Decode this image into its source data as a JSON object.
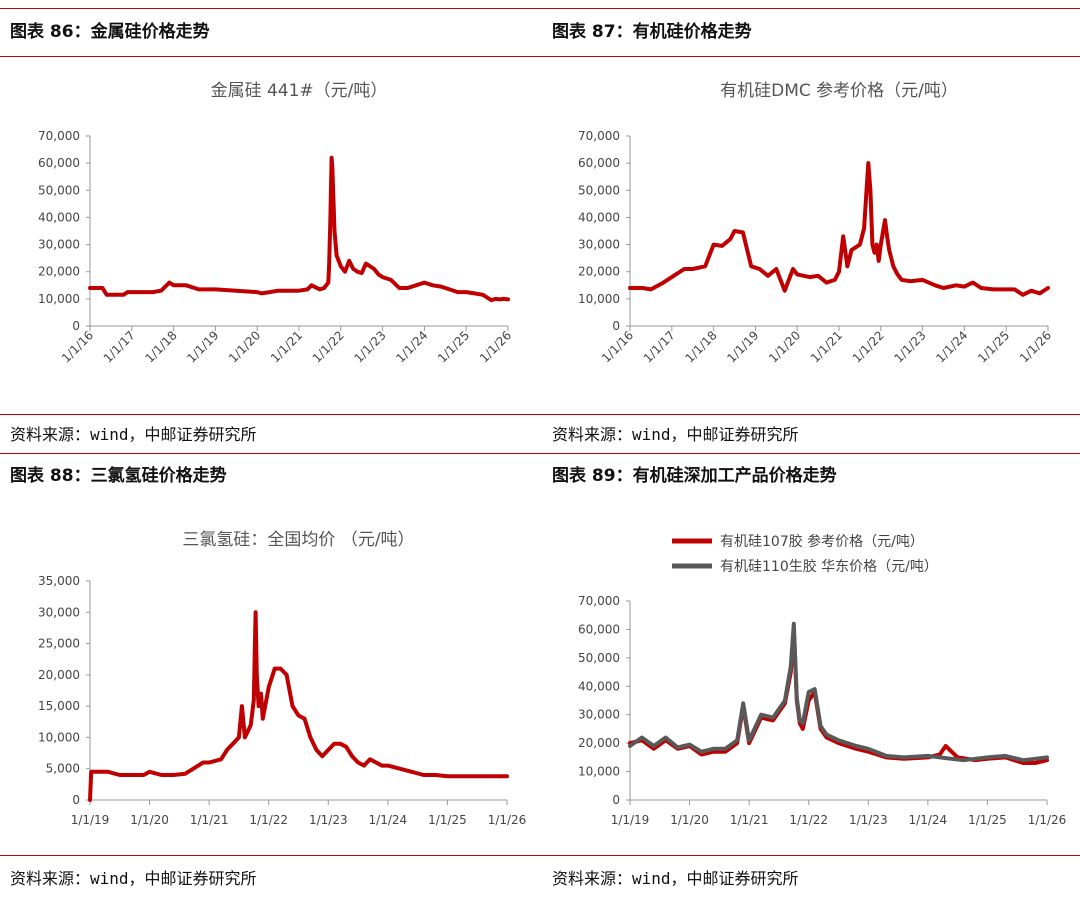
{
  "panels": [
    {
      "heading": "图表 86：金属硅价格走势",
      "source": "资料来源：wind，中邮证券研究所"
    },
    {
      "heading": "图表 87：有机硅价格走势",
      "source": "资料来源：wind，中邮证券研究所"
    },
    {
      "heading": "图表 88：三氯氢硅价格走势",
      "source": "资料来源：wind，中邮证券研究所"
    },
    {
      "heading": "图表 89：有机硅深加工产品价格走势",
      "source": "资料来源：wind，中邮证券研究所"
    }
  ],
  "colors": {
    "red": "#c00000",
    "gray": "#595959",
    "rule": "#c00000"
  },
  "chart_data": [
    {
      "type": "line",
      "title": "金属硅 441#（元/吨）",
      "ylim": [
        0,
        70000
      ],
      "yticks": [
        0,
        10000,
        20000,
        30000,
        40000,
        50000,
        60000,
        70000
      ],
      "ytick_labels": [
        "0",
        "10,000",
        "20,000",
        "30,000",
        "40,000",
        "50,000",
        "60,000",
        "70,000"
      ],
      "xlim": [
        2016,
        2026
      ],
      "xticks": [
        2016,
        2017,
        2018,
        2019,
        2020,
        2021,
        2022,
        2023,
        2024,
        2025,
        2026
      ],
      "xtick_labels": [
        "1/1/16",
        "1/1/17",
        "1/1/18",
        "1/1/19",
        "1/1/20",
        "1/1/21",
        "1/1/22",
        "1/1/23",
        "1/1/24",
        "1/1/25",
        "1/1/26"
      ],
      "x_label_rotation": -45,
      "series": [
        {
          "color": "#c00000",
          "x": [
            2016.0,
            2016.3,
            2016.4,
            2016.8,
            2016.9,
            2017.5,
            2017.7,
            2017.9,
            2018.0,
            2018.3,
            2018.6,
            2019.0,
            2019.5,
            2020.0,
            2020.1,
            2020.3,
            2020.5,
            2020.8,
            2021.0,
            2021.2,
            2021.3,
            2021.5,
            2021.6,
            2021.7,
            2021.72,
            2021.75,
            2021.78,
            2021.8,
            2021.85,
            2021.9,
            2021.95,
            2022.0,
            2022.1,
            2022.2,
            2022.3,
            2022.4,
            2022.5,
            2022.6,
            2022.7,
            2022.8,
            2022.9,
            2023.0,
            2023.2,
            2023.4,
            2023.6,
            2023.8,
            2024.0,
            2024.2,
            2024.4,
            2024.6,
            2024.8,
            2025.0,
            2025.2,
            2025.4,
            2025.5,
            2025.6,
            2025.7,
            2025.8,
            2025.9,
            2026.0
          ],
          "y": [
            14000,
            14000,
            11500,
            11500,
            12500,
            12500,
            13000,
            16000,
            15000,
            15000,
            13500,
            13500,
            13000,
            12500,
            12000,
            12500,
            13000,
            13000,
            13000,
            13500,
            15000,
            13500,
            14000,
            16000,
            22000,
            40000,
            62000,
            58000,
            35000,
            26000,
            24000,
            22000,
            20000,
            24000,
            21000,
            20000,
            19500,
            23000,
            22000,
            21000,
            19000,
            18000,
            17000,
            14000,
            14000,
            15000,
            16000,
            15000,
            14500,
            13500,
            12500,
            12500,
            12000,
            11500,
            10500,
            9500,
            10000,
            9800,
            10000,
            9800
          ]
        }
      ]
    },
    {
      "type": "line",
      "title": "有机硅DMC 参考价格（元/吨）",
      "ylim": [
        0,
        70000
      ],
      "yticks": [
        0,
        10000,
        20000,
        30000,
        40000,
        50000,
        60000,
        70000
      ],
      "ytick_labels": [
        "0",
        "10,000",
        "20,000",
        "30,000",
        "40,000",
        "50,000",
        "60,000",
        "70,000"
      ],
      "xlim": [
        2016,
        2026
      ],
      "xticks": [
        2016,
        2017,
        2018,
        2019,
        2020,
        2021,
        2022,
        2023,
        2024,
        2025,
        2026
      ],
      "xtick_labels": [
        "1/1/16",
        "1/1/17",
        "1/1/18",
        "1/1/19",
        "1/1/20",
        "1/1/21",
        "1/1/22",
        "1/1/23",
        "1/1/24",
        "1/1/25",
        "1/1/26"
      ],
      "x_label_rotation": -45,
      "series": [
        {
          "color": "#c00000",
          "x": [
            2016.0,
            2016.3,
            2016.5,
            2016.8,
            2017.0,
            2017.3,
            2017.5,
            2017.8,
            2018.0,
            2018.2,
            2018.4,
            2018.5,
            2018.7,
            2018.9,
            2019.1,
            2019.3,
            2019.5,
            2019.7,
            2019.9,
            2020.0,
            2020.3,
            2020.5,
            2020.7,
            2020.9,
            2021.0,
            2021.1,
            2021.2,
            2021.3,
            2021.4,
            2021.5,
            2021.6,
            2021.7,
            2021.75,
            2021.8,
            2021.85,
            2021.9,
            2021.95,
            2022.0,
            2022.1,
            2022.15,
            2022.2,
            2022.3,
            2022.4,
            2022.5,
            2022.7,
            2023.0,
            2023.3,
            2023.5,
            2023.8,
            2024.0,
            2024.2,
            2024.4,
            2024.7,
            2025.0,
            2025.2,
            2025.4,
            2025.6,
            2025.8,
            2026.0
          ],
          "y": [
            14000,
            14000,
            13500,
            16000,
            18000,
            21000,
            21000,
            22000,
            30000,
            29500,
            32000,
            35000,
            34500,
            22000,
            21000,
            18500,
            21000,
            13000,
            21000,
            19000,
            18000,
            18500,
            16000,
            17000,
            20000,
            33000,
            22000,
            28000,
            29000,
            30000,
            36000,
            60000,
            50000,
            30000,
            27000,
            30000,
            24000,
            30000,
            39000,
            33000,
            28000,
            22000,
            19000,
            17000,
            16500,
            17000,
            15000,
            14000,
            15000,
            14500,
            16000,
            14000,
            13500,
            13500,
            13500,
            11500,
            13000,
            12000,
            14000
          ],
          "notes": ""
        }
      ]
    },
    {
      "type": "line",
      "title": "三氯氢硅：全国均价 （元/吨）",
      "ylim": [
        0,
        35000
      ],
      "yticks": [
        0,
        5000,
        10000,
        15000,
        20000,
        25000,
        30000,
        35000
      ],
      "ytick_labels": [
        "0",
        "5,000",
        "10,000",
        "15,000",
        "20,000",
        "25,000",
        "30,000",
        "35,000"
      ],
      "xlim": [
        2019,
        2026
      ],
      "xticks": [
        2019,
        2020,
        2021,
        2022,
        2023,
        2024,
        2025,
        2026
      ],
      "xtick_labels": [
        "1/1/19",
        "1/1/20",
        "1/1/21",
        "1/1/22",
        "1/1/23",
        "1/1/24",
        "1/1/25",
        "1/1/26"
      ],
      "x_label_rotation": 0,
      "series": [
        {
          "color": "#c00000",
          "x": [
            2019.0,
            2019.02,
            2019.3,
            2019.5,
            2019.8,
            2019.9,
            2020.0,
            2020.2,
            2020.4,
            2020.6,
            2020.9,
            2021.0,
            2021.2,
            2021.3,
            2021.4,
            2021.5,
            2021.55,
            2021.6,
            2021.65,
            2021.7,
            2021.75,
            2021.78,
            2021.8,
            2021.83,
            2021.87,
            2021.9,
            2022.0,
            2022.1,
            2022.2,
            2022.3,
            2022.4,
            2022.5,
            2022.6,
            2022.7,
            2022.8,
            2022.9,
            2023.0,
            2023.1,
            2023.2,
            2023.3,
            2023.4,
            2023.5,
            2023.6,
            2023.7,
            2023.9,
            2024.0,
            2024.2,
            2024.4,
            2024.6,
            2024.8,
            2025.0,
            2025.5,
            2026.0
          ],
          "y": [
            0,
            4500,
            4500,
            4000,
            4000,
            4000,
            4500,
            4000,
            4000,
            4200,
            6000,
            6000,
            6500,
            8000,
            9000,
            10000,
            15000,
            10000,
            11000,
            12000,
            16000,
            30000,
            20000,
            15000,
            17000,
            13000,
            18000,
            21000,
            21000,
            20000,
            15000,
            13500,
            13000,
            10000,
            8000,
            7000,
            8000,
            9000,
            9000,
            8500,
            7000,
            6000,
            5500,
            6500,
            5500,
            5500,
            5000,
            4500,
            4000,
            4000,
            3800,
            3800,
            3800
          ]
        }
      ]
    },
    {
      "type": "line",
      "title": "",
      "ylim": [
        0,
        70000
      ],
      "yticks": [
        0,
        10000,
        20000,
        30000,
        40000,
        50000,
        60000,
        70000
      ],
      "ytick_labels": [
        "0",
        "10,000",
        "20,000",
        "30,000",
        "40,000",
        "50,000",
        "60,000",
        "70,000"
      ],
      "xlim": [
        2019,
        2026
      ],
      "xticks": [
        2019,
        2020,
        2021,
        2022,
        2023,
        2024,
        2025,
        2026
      ],
      "xtick_labels": [
        "1/1/19",
        "1/1/20",
        "1/1/21",
        "1/1/22",
        "1/1/23",
        "1/1/24",
        "1/1/25",
        "1/1/26"
      ],
      "x_label_rotation": 0,
      "legend": "top-left",
      "series": [
        {
          "name": "有机硅107胶 参考价格（元/吨）",
          "color": "#c00000",
          "x": [
            2019.0,
            2019.2,
            2019.4,
            2019.6,
            2019.8,
            2020.0,
            2020.2,
            2020.4,
            2020.6,
            2020.8,
            2020.9,
            2021.0,
            2021.2,
            2021.4,
            2021.6,
            2021.7,
            2021.75,
            2021.8,
            2021.85,
            2021.9,
            2022.0,
            2022.1,
            2022.2,
            2022.3,
            2022.5,
            2022.8,
            2023.0,
            2023.3,
            2023.6,
            2024.0,
            2024.2,
            2024.3,
            2024.5,
            2024.8,
            2025.0,
            2025.3,
            2025.6,
            2025.8,
            2026.0
          ],
          "y": [
            20000,
            21000,
            18000,
            21000,
            18000,
            19000,
            16000,
            17000,
            17000,
            20000,
            33000,
            20000,
            29000,
            28000,
            34000,
            45000,
            60000,
            35000,
            27000,
            25000,
            35000,
            38000,
            25000,
            22000,
            20000,
            18000,
            17000,
            15000,
            14500,
            15000,
            16000,
            19000,
            15000,
            14000,
            14500,
            15000,
            13000,
            13000,
            14000
          ]
        },
        {
          "name": "有机硅110生胶 华东价格（元/吨）",
          "color": "#595959",
          "x": [
            2019.0,
            2019.2,
            2019.4,
            2019.6,
            2019.8,
            2020.0,
            2020.2,
            2020.4,
            2020.6,
            2020.8,
            2020.9,
            2021.0,
            2021.2,
            2021.4,
            2021.6,
            2021.7,
            2021.75,
            2021.8,
            2021.85,
            2021.9,
            2022.0,
            2022.1,
            2022.2,
            2022.3,
            2022.5,
            2022.8,
            2023.0,
            2023.3,
            2023.6,
            2024.0,
            2024.2,
            2024.4,
            2024.6,
            2024.8,
            2025.0,
            2025.3,
            2025.6,
            2025.8,
            2026.0
          ],
          "y": [
            19000,
            22000,
            19000,
            22000,
            18500,
            19500,
            17000,
            18000,
            18000,
            21000,
            34000,
            21000,
            30000,
            29000,
            35000,
            47000,
            62000,
            36000,
            28000,
            27000,
            38000,
            39000,
            26000,
            23000,
            21000,
            19000,
            18000,
            15500,
            15000,
            15500,
            15000,
            14500,
            14000,
            14500,
            15000,
            15500,
            14000,
            14500,
            15000
          ]
        }
      ]
    }
  ]
}
